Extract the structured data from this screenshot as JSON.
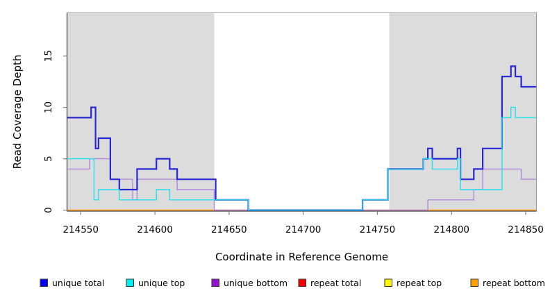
{
  "chart_data": {
    "type": "line",
    "subtype": "step-coverage",
    "title": "",
    "xlabel": "Coordinate in Reference Genome",
    "ylabel": "Read Coverage Depth",
    "xlim": [
      214541,
      214857
    ],
    "ylim": [
      0,
      19.2
    ],
    "x_ticks": [
      214550,
      214600,
      214650,
      214700,
      214750,
      214800,
      214850
    ],
    "y_ticks": [
      0,
      5,
      10,
      15
    ],
    "grid": false,
    "legend_position": "bottom",
    "shade_color": "#dcdcdc",
    "shaded_regions": [
      {
        "from": 214541,
        "to": 214640
      },
      {
        "from": 214758,
        "to": 214857
      }
    ],
    "series": [
      {
        "name": "repeat top",
        "color": "#f2e300",
        "legend_color": "#fff700",
        "width": 1.0,
        "steps": [
          [
            214541,
            0
          ]
        ],
        "end": 214857
      },
      {
        "name": "repeat bottom",
        "color": "#ff9b21",
        "legend_color": "#ffa200",
        "width": 1.6,
        "steps": [
          [
            214541,
            0
          ]
        ],
        "end": 214857
      },
      {
        "name": "repeat total",
        "color": "#d04b6e",
        "legend_color": "#f40000",
        "width": 1.3,
        "steps": [
          [
            214640,
            0
          ]
        ],
        "end": 214784
      },
      {
        "name": "unique bottom",
        "color": "#b186dd",
        "legend_color": "#9413d2",
        "width": 1.4,
        "steps": [
          [
            214541,
            4
          ],
          [
            214556,
            5
          ],
          [
            214570,
            3
          ],
          [
            214585,
            1
          ],
          [
            214588,
            3
          ],
          [
            214615,
            2
          ],
          [
            214640,
            0
          ],
          [
            214784,
            1
          ],
          [
            214815,
            2
          ],
          [
            214821,
            4
          ],
          [
            214847,
            3
          ]
        ],
        "end": 214857
      },
      {
        "name": "unique total",
        "color": "#2727d3",
        "legend_color": "#0000f5",
        "width": 2.2,
        "steps": [
          [
            214541,
            9
          ],
          [
            214557,
            10
          ],
          [
            214560,
            6
          ],
          [
            214562,
            7
          ],
          [
            214570,
            3
          ],
          [
            214576,
            2
          ],
          [
            214588,
            4
          ],
          [
            214601,
            5
          ],
          [
            214610,
            4
          ],
          [
            214615,
            3
          ],
          [
            214641,
            1
          ],
          [
            214663,
            0
          ],
          [
            214740,
            1
          ],
          [
            214757,
            4
          ],
          [
            214781,
            5
          ],
          [
            214784,
            6
          ],
          [
            214787,
            5
          ],
          [
            214804,
            6
          ],
          [
            214806,
            3
          ],
          [
            214815,
            4
          ],
          [
            214821,
            6
          ],
          [
            214834,
            13
          ],
          [
            214840,
            14
          ],
          [
            214843,
            13
          ],
          [
            214847,
            12
          ]
        ],
        "end": 214857
      },
      {
        "name": "unique top",
        "color": "#22dfee",
        "legend_color": "#00eeee",
        "width": 1.4,
        "steps": [
          [
            214541,
            5
          ],
          [
            214559,
            1
          ],
          [
            214562,
            2
          ],
          [
            214576,
            1
          ],
          [
            214601,
            2
          ],
          [
            214610,
            1
          ],
          [
            214663,
            0
          ],
          [
            214740,
            1
          ],
          [
            214757,
            4
          ],
          [
            214781,
            5
          ],
          [
            214787,
            4
          ],
          [
            214804,
            5
          ],
          [
            214806,
            2
          ],
          [
            214834,
            9
          ],
          [
            214840,
            10
          ],
          [
            214843,
            9
          ]
        ],
        "end": 214857
      }
    ],
    "legend": [
      {
        "label": "unique total",
        "swatch": "#0000f5"
      },
      {
        "label": "unique top",
        "swatch": "#00eeee"
      },
      {
        "label": "unique bottom",
        "swatch": "#9413d2"
      },
      {
        "label": "repeat total",
        "swatch": "#f40000"
      },
      {
        "label": "repeat top",
        "swatch": "#fff700"
      },
      {
        "label": "repeat bottom",
        "swatch": "#ffa200"
      }
    ]
  }
}
